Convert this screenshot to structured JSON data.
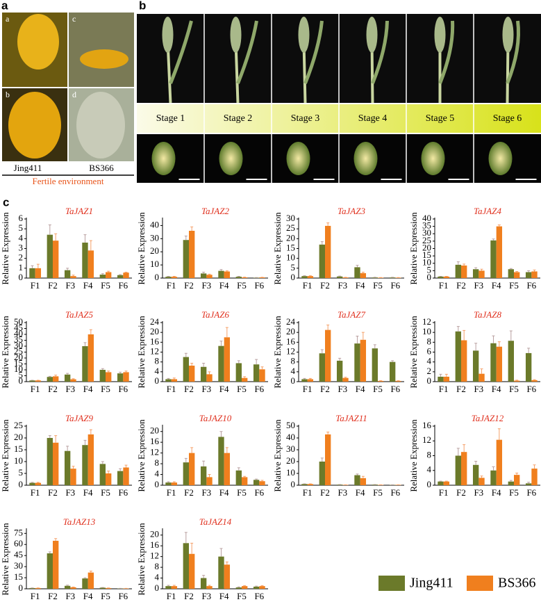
{
  "panels": {
    "a": {
      "letter": "a",
      "photos": [
        "a",
        "c",
        "b",
        "d"
      ],
      "left": "Jing411",
      "right": "BS366",
      "caption": "Fertile environment"
    },
    "b": {
      "letter": "b",
      "stages": [
        "Stage 1",
        "Stage 2",
        "Stage 3",
        "Stage 4",
        "Stage 5",
        "Stage 6"
      ]
    },
    "c": {
      "letter": "c"
    }
  },
  "chart_data": [
    {
      "type": "bar",
      "title": "TaJAZ1",
      "ylabel": "Relative Expression",
      "categories": [
        "F1",
        "F2",
        "F3",
        "F4",
        "F5",
        "F6"
      ],
      "ylim": [
        0,
        6
      ],
      "yticks": [
        0,
        1,
        2,
        3,
        4,
        5,
        6
      ],
      "series": [
        {
          "name": "Jing411",
          "color": "#6b7a2a",
          "values": [
            1,
            4.4,
            0.8,
            3.6,
            0.35,
            0.3
          ],
          "errors": [
            0.25,
            1,
            0.2,
            0.8,
            0.1,
            0.05
          ]
        },
        {
          "name": "BS366",
          "color": "#f07f1e",
          "values": [
            1,
            3.8,
            0.2,
            2.8,
            0.6,
            0.55
          ],
          "errors": [
            0.4,
            0.7,
            0.1,
            1,
            0.1,
            0.05
          ]
        }
      ]
    },
    {
      "type": "bar",
      "title": "TaJAZ2",
      "ylabel": "Relative Expression",
      "categories": [
        "F1",
        "F2",
        "F3",
        "F4",
        "F5",
        "F6"
      ],
      "ylim": [
        0,
        45
      ],
      "yticks": [
        0,
        10,
        20,
        30,
        40
      ],
      "series": [
        {
          "name": "Jing411",
          "color": "#6b7a2a",
          "values": [
            1,
            29,
            3.5,
            5.5,
            1,
            0.3
          ],
          "errors": [
            0.3,
            3,
            1,
            1,
            0.3,
            0.1
          ]
        },
        {
          "name": "BS366",
          "color": "#f07f1e",
          "values": [
            1,
            36,
            2.5,
            5,
            0.5,
            0.5
          ],
          "errors": [
            0.3,
            3,
            0.5,
            0.5,
            0.2,
            0.1
          ]
        }
      ]
    },
    {
      "type": "bar",
      "title": "TaJAZ3",
      "ylabel": "Relative Expression",
      "categories": [
        "F1",
        "F2",
        "F3",
        "F4",
        "F5",
        "F6"
      ],
      "ylim": [
        0,
        30
      ],
      "yticks": [
        0,
        5,
        10,
        15,
        20,
        25,
        30
      ],
      "series": [
        {
          "name": "Jing411",
          "color": "#6b7a2a",
          "values": [
            1,
            17,
            0.8,
            5.5,
            0.3,
            0.3
          ],
          "errors": [
            0.2,
            1.5,
            0.2,
            1,
            0.1,
            0.1
          ]
        },
        {
          "name": "BS366",
          "color": "#f07f1e",
          "values": [
            1,
            26.5,
            0.3,
            2.5,
            0.2,
            0.2
          ],
          "errors": [
            0.2,
            1.5,
            0.1,
            0.5,
            0.05,
            0.05
          ]
        }
      ]
    },
    {
      "type": "bar",
      "title": "TaJAZ4",
      "ylabel": "Relative Expression",
      "categories": [
        "F1",
        "F2",
        "F3",
        "F4",
        "F5",
        "F6"
      ],
      "ylim": [
        0,
        40
      ],
      "yticks": [
        0,
        5,
        10,
        15,
        20,
        25,
        30,
        35,
        40
      ],
      "series": [
        {
          "name": "Jing411",
          "color": "#6b7a2a",
          "values": [
            1,
            9,
            6,
            25.5,
            6,
            4
          ],
          "errors": [
            0.2,
            2,
            1,
            1,
            0.5,
            1
          ]
        },
        {
          "name": "BS366",
          "color": "#f07f1e",
          "values": [
            1,
            8.5,
            5,
            35,
            4,
            4.5
          ],
          "errors": [
            0.2,
            1,
            1,
            1,
            0.5,
            1
          ]
        }
      ]
    },
    {
      "type": "bar",
      "title": "TaJAZ5",
      "ylabel": "Relative Expression",
      "categories": [
        "F1",
        "F2",
        "F3",
        "F4",
        "F5",
        "F6"
      ],
      "ylim": [
        0,
        50
      ],
      "yticks": [
        0,
        5,
        10,
        15,
        20,
        25,
        30,
        35,
        40,
        45,
        50
      ],
      "series": [
        {
          "name": "Jing411",
          "color": "#6b7a2a",
          "values": [
            1,
            4,
            6,
            30,
            10,
            7
          ],
          "errors": [
            0.2,
            0.5,
            1,
            3,
            1,
            1
          ]
        },
        {
          "name": "BS366",
          "color": "#f07f1e",
          "values": [
            1,
            4.5,
            2,
            40,
            8,
            8
          ],
          "errors": [
            0.2,
            1,
            0.5,
            4,
            1,
            1
          ]
        }
      ]
    },
    {
      "type": "bar",
      "title": "TaJAZ6",
      "ylabel": "Relative Expression",
      "categories": [
        "F1",
        "F2",
        "F3",
        "F4",
        "F5",
        "F6"
      ],
      "ylim": [
        0,
        24
      ],
      "yticks": [
        0,
        4,
        8,
        12,
        16,
        20,
        24
      ],
      "series": [
        {
          "name": "Jing411",
          "color": "#6b7a2a",
          "values": [
            1,
            10,
            6,
            14.5,
            7.5,
            7
          ],
          "errors": [
            0.3,
            1.5,
            1.5,
            2,
            1,
            2
          ]
        },
        {
          "name": "BS366",
          "color": "#f07f1e",
          "values": [
            1,
            6.5,
            3,
            18,
            1.5,
            5
          ],
          "errors": [
            0.5,
            1,
            1,
            4,
            0.5,
            1
          ]
        }
      ]
    },
    {
      "type": "bar",
      "title": "TaJAZ7",
      "ylabel": "Relative Expression",
      "categories": [
        "F1",
        "F2",
        "F3",
        "F4",
        "F5",
        "F6"
      ],
      "ylim": [
        0,
        24
      ],
      "yticks": [
        0,
        4,
        8,
        12,
        16,
        20,
        24
      ],
      "series": [
        {
          "name": "Jing411",
          "color": "#6b7a2a",
          "values": [
            1,
            11.5,
            8.5,
            15.5,
            13.5,
            8
          ],
          "errors": [
            0.3,
            1.5,
            1,
            3,
            1.5,
            0.5
          ]
        },
        {
          "name": "BS366",
          "color": "#f07f1e",
          "values": [
            1,
            21,
            1.5,
            17,
            0.3,
            0.3
          ],
          "errors": [
            0.3,
            2,
            0.3,
            3,
            0.1,
            0.1
          ]
        }
      ]
    },
    {
      "type": "bar",
      "title": "TaJAZ8",
      "ylabel": "Relative Expression",
      "categories": [
        "F1",
        "F2",
        "F3",
        "F4",
        "F5",
        "F6"
      ],
      "ylim": [
        0,
        12
      ],
      "yticks": [
        0,
        2,
        4,
        6,
        8,
        10,
        12
      ],
      "series": [
        {
          "name": "Jing411",
          "color": "#6b7a2a",
          "values": [
            1,
            10.2,
            6.3,
            7.8,
            8.3,
            5.8
          ],
          "errors": [
            0.5,
            1,
            1.5,
            1.5,
            2,
            1
          ]
        },
        {
          "name": "BS366",
          "color": "#f07f1e",
          "values": [
            1,
            8.4,
            1.6,
            7.1,
            0.2,
            0.3
          ],
          "errors": [
            0.5,
            2,
            1,
            1,
            0.1,
            0.1
          ]
        }
      ]
    },
    {
      "type": "bar",
      "title": "TaJAZ9",
      "ylabel": "Relative Expression",
      "categories": [
        "F1",
        "F2",
        "F3",
        "F4",
        "F5",
        "F6"
      ],
      "ylim": [
        0,
        25
      ],
      "yticks": [
        0,
        5,
        10,
        15,
        20,
        25
      ],
      "series": [
        {
          "name": "Jing411",
          "color": "#6b7a2a",
          "values": [
            1,
            20,
            14.5,
            17,
            9,
            6
          ],
          "errors": [
            0.2,
            1,
            2,
            2,
            1,
            1
          ]
        },
        {
          "name": "BS366",
          "color": "#f07f1e",
          "values": [
            1,
            18,
            7,
            21.5,
            5,
            7.5
          ],
          "errors": [
            0.2,
            3,
            1,
            2,
            1,
            1
          ]
        }
      ]
    },
    {
      "type": "bar",
      "title": "TaJAZ10",
      "ylabel": "Relative Expression",
      "categories": [
        "F1",
        "F2",
        "F3",
        "F4",
        "F5",
        "F6"
      ],
      "ylim": [
        0,
        22
      ],
      "yticks": [
        0,
        4,
        8,
        12,
        16,
        20
      ],
      "series": [
        {
          "name": "Jing411",
          "color": "#6b7a2a",
          "values": [
            1,
            8.5,
            7,
            18,
            5.5,
            2
          ],
          "errors": [
            0.3,
            1.5,
            2,
            2,
            1,
            0.3
          ]
        },
        {
          "name": "BS366",
          "color": "#f07f1e",
          "values": [
            1,
            12,
            3,
            12,
            3,
            1.5
          ],
          "errors": [
            0.3,
            2,
            1,
            2,
            0.3,
            0.3
          ]
        }
      ]
    },
    {
      "type": "bar",
      "title": "TaJAZ11",
      "ylabel": "Relative Expression",
      "categories": [
        "F1",
        "F2",
        "F3",
        "F4",
        "F5",
        "F6"
      ],
      "ylim": [
        0,
        50
      ],
      "yticks": [
        0,
        10,
        20,
        30,
        40,
        50
      ],
      "series": [
        {
          "name": "Jing411",
          "color": "#6b7a2a",
          "values": [
            1,
            20,
            0.5,
            8.5,
            0.5,
            0.3
          ],
          "errors": [
            0.2,
            3,
            0.1,
            1,
            0.1,
            0.1
          ]
        },
        {
          "name": "BS366",
          "color": "#f07f1e",
          "values": [
            1,
            43,
            0.3,
            6,
            0.3,
            0.3
          ],
          "errors": [
            0.2,
            2,
            0.1,
            1.5,
            0.1,
            0.1
          ]
        }
      ]
    },
    {
      "type": "bar",
      "title": "TaJAZ12",
      "ylabel": "Relative Expression",
      "categories": [
        "F1",
        "F2",
        "F3",
        "F4",
        "F5",
        "F6"
      ],
      "ylim": [
        0,
        16
      ],
      "yticks": [
        0,
        4,
        8,
        12,
        16
      ],
      "series": [
        {
          "name": "Jing411",
          "color": "#6b7a2a",
          "values": [
            1,
            8,
            5.5,
            4,
            1,
            0.5
          ],
          "errors": [
            0.1,
            2,
            1,
            1,
            0.3,
            0.3
          ]
        },
        {
          "name": "BS366",
          "color": "#f07f1e",
          "values": [
            1,
            9,
            2,
            12.3,
            2.8,
            4.5
          ],
          "errors": [
            0.1,
            2,
            0.5,
            3,
            0.5,
            1
          ]
        }
      ]
    },
    {
      "type": "bar",
      "title": "TaJAZ13",
      "ylabel": "Relative Expression",
      "categories": [
        "F1",
        "F2",
        "F3",
        "F4",
        "F5",
        "F6"
      ],
      "ylim": [
        0,
        80
      ],
      "yticks": [
        0,
        15,
        30,
        45,
        60,
        75
      ],
      "series": [
        {
          "name": "Jing411",
          "color": "#6b7a2a",
          "values": [
            1,
            48,
            4,
            14,
            1.5,
            0.5
          ],
          "errors": [
            0.2,
            2,
            1,
            1,
            0.3,
            0.1
          ]
        },
        {
          "name": "BS366",
          "color": "#f07f1e",
          "values": [
            1,
            65,
            2,
            22,
            1,
            0.5
          ],
          "errors": [
            0.2,
            3,
            0.5,
            2,
            0.2,
            0.1
          ]
        }
      ]
    },
    {
      "type": "bar",
      "title": "TaJAZ14",
      "ylabel": "Relative Expression",
      "categories": [
        "F1",
        "F2",
        "F3",
        "F4",
        "F5",
        "F6"
      ],
      "ylim": [
        0,
        22
      ],
      "yticks": [
        0,
        4,
        8,
        12,
        16,
        20
      ],
      "series": [
        {
          "name": "Jing411",
          "color": "#6b7a2a",
          "values": [
            1,
            17,
            4,
            12,
            0.5,
            0.8
          ],
          "errors": [
            0.3,
            4,
            1,
            3,
            0.2,
            0.2
          ]
        },
        {
          "name": "BS366",
          "color": "#f07f1e",
          "values": [
            1,
            13,
            1,
            9,
            1,
            1
          ],
          "errors": [
            0.3,
            4,
            0.3,
            1,
            0.2,
            0.2
          ]
        }
      ]
    }
  ]
}
